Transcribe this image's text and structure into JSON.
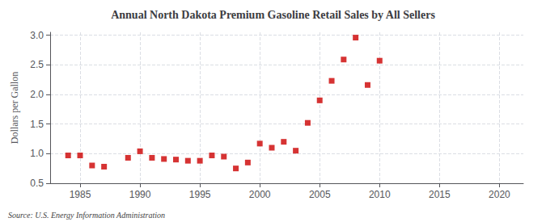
{
  "chart_data": {
    "type": "scatter",
    "title": "Annual North Dakota Premium Gasoline Retail Sales by All Sellers",
    "ylabel": "Dollars per Gallon",
    "annotations": [
      "Source: U.S. Energy Information Administration"
    ],
    "x": [
      1984,
      1985,
      1986,
      1987,
      1989,
      1990,
      1991,
      1992,
      1993,
      1994,
      1995,
      1996,
      1997,
      1998,
      1999,
      2000,
      2001,
      2002,
      2003,
      2004,
      2005,
      2006,
      2007,
      2008,
      2009,
      2010
    ],
    "values": [
      0.97,
      0.97,
      0.8,
      0.78,
      0.93,
      1.04,
      0.93,
      0.91,
      0.9,
      0.88,
      0.88,
      0.97,
      0.95,
      0.75,
      0.85,
      1.17,
      1.1,
      1.2,
      1.05,
      1.52,
      1.9,
      2.23,
      2.59,
      2.96,
      2.16,
      2.57
    ],
    "color": "#cc0000",
    "marker": "square",
    "xlim": [
      1982.5,
      2022
    ],
    "xticks": [
      1985,
      1990,
      1995,
      2000,
      2005,
      2010,
      2015,
      2020
    ],
    "ylim": [
      0.5,
      3.05
    ],
    "yticks": [
      0.5,
      {
        "value": 1.0,
        "label": "1.0"
      },
      1.5,
      {
        "value": 2.0,
        "label": "2.0"
      },
      2.5,
      {
        "value": 3.0,
        "label": "3.0"
      }
    ],
    "grid": true
  }
}
